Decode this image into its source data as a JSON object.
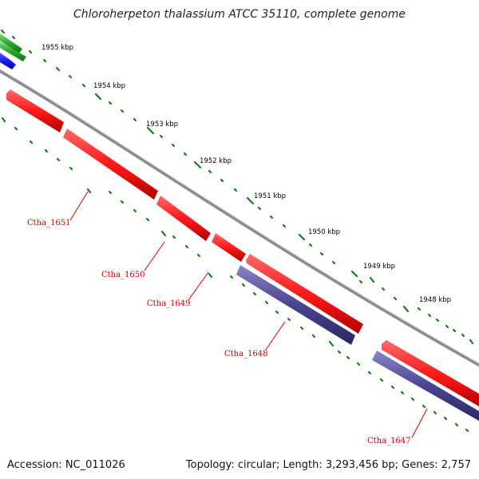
{
  "title": "Chloroherpeton thalassium ATCC 35110, complete genome",
  "footer": {
    "accession": "Accession: NC_011026",
    "summary": "Topology: circular; Length: 3,293,456 bp; Genes: 2,757"
  },
  "ticks": [
    "1955 kbp",
    "1954 kbp",
    "1953 kbp",
    "1952 kbp",
    "1951 kbp",
    "1950 kbp",
    "1949 kbp",
    "1948 kbp"
  ],
  "genes": [
    {
      "label": "Ctha_1651"
    },
    {
      "label": "Ctha_1650"
    },
    {
      "label": "Ctha_1649"
    },
    {
      "label": "Ctha_1648"
    },
    {
      "label": "Ctha_1647"
    }
  ],
  "colors": {
    "forward_cds": "#ff1a1a",
    "reverse_cds": "#4a4490",
    "backbone": "#8c8c8c",
    "ticks": "#1a7a1a",
    "gc_green": "#2aa52a",
    "blue_feature": "#1a1aee",
    "label": "#cc0000"
  }
}
